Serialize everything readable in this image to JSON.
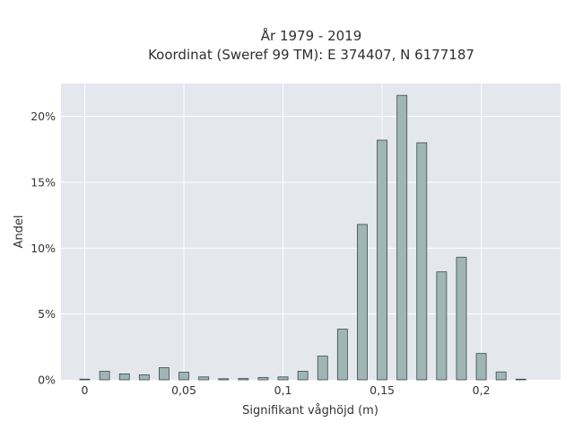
{
  "chart_data": {
    "type": "bar",
    "title": "År 1979 - 2019",
    "subtitle": "Koordinat (Sweref 99 TM): E 374407, N 6177187",
    "xlabel": "Signifikant våghöjd (m)",
    "ylabel": "Andel",
    "x_ticks": [
      {
        "value": 0,
        "label": "0"
      },
      {
        "value": 0.05,
        "label": "0,05"
      },
      {
        "value": 0.1,
        "label": "0,1"
      },
      {
        "value": 0.15,
        "label": "0,15"
      },
      {
        "value": 0.2,
        "label": "0,2"
      }
    ],
    "y_ticks": [
      {
        "value": 0,
        "label": "0%"
      },
      {
        "value": 5,
        "label": "5%"
      },
      {
        "value": 10,
        "label": "10%"
      },
      {
        "value": 15,
        "label": "15%"
      },
      {
        "value": 20,
        "label": "20%"
      }
    ],
    "xlim": [
      -0.012,
      0.24
    ],
    "ylim": [
      0,
      22.5
    ],
    "bar_width": 0.005,
    "x": [
      0.0,
      0.01,
      0.02,
      0.03,
      0.04,
      0.05,
      0.06,
      0.07,
      0.08,
      0.09,
      0.1,
      0.11,
      0.12,
      0.13,
      0.14,
      0.15,
      0.16,
      0.17,
      0.18,
      0.19,
      0.2,
      0.21,
      0.22
    ],
    "values": [
      0.05,
      0.65,
      0.45,
      0.38,
      0.92,
      0.58,
      0.22,
      0.08,
      0.1,
      0.18,
      0.22,
      0.65,
      1.8,
      3.85,
      11.8,
      18.2,
      21.6,
      18.0,
      8.2,
      9.3,
      2.0,
      0.6,
      0.05
    ],
    "grid": true,
    "colors": {
      "background": "#e5e7ef",
      "bar_fill": "#9fb5b6",
      "bar_edge": "#3d4a4a"
    }
  }
}
